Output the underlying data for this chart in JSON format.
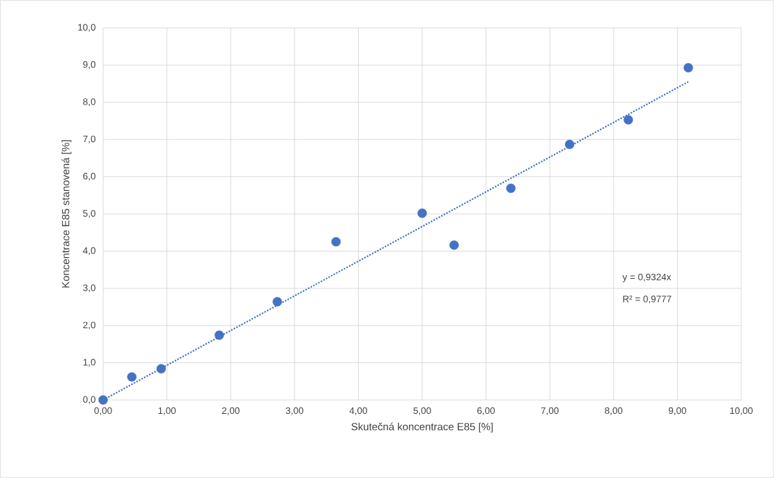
{
  "chart_data": {
    "type": "scatter",
    "xlabel": "Skutečná koncentrace E85 [%]",
    "ylabel": "Koncentrace E85 stanovená [%]",
    "xlim": [
      0,
      10
    ],
    "ylim": [
      0,
      10
    ],
    "xticks": [
      {
        "value": 0,
        "label": "0,00"
      },
      {
        "value": 1,
        "label": "1,00"
      },
      {
        "value": 2,
        "label": "2,00"
      },
      {
        "value": 3,
        "label": "3,00"
      },
      {
        "value": 4,
        "label": "4,00"
      },
      {
        "value": 5,
        "label": "5,00"
      },
      {
        "value": 6,
        "label": "6,00"
      },
      {
        "value": 7,
        "label": "7,00"
      },
      {
        "value": 8,
        "label": "8,00"
      },
      {
        "value": 9,
        "label": "9,00"
      },
      {
        "value": 10,
        "label": "10,00"
      }
    ],
    "yticks": [
      {
        "value": 0,
        "label": "0,0"
      },
      {
        "value": 1,
        "label": "1,0"
      },
      {
        "value": 2,
        "label": "2,0"
      },
      {
        "value": 3,
        "label": "3,0"
      },
      {
        "value": 4,
        "label": "4,0"
      },
      {
        "value": 5,
        "label": "5,0"
      },
      {
        "value": 6,
        "label": "6,0"
      },
      {
        "value": 7,
        "label": "7,0"
      },
      {
        "value": 8,
        "label": "8,0"
      },
      {
        "value": 9,
        "label": "9,0"
      },
      {
        "value": 10,
        "label": "10,0"
      }
    ],
    "grid": true,
    "series": [
      {
        "marker": "circle",
        "color": "#4472c4",
        "x": [
          0,
          0.45,
          0.91,
          1.82,
          2.73,
          3.65,
          5.0,
          5.5,
          6.39,
          7.31,
          8.23,
          9.17
        ],
        "values": [
          0,
          0.62,
          0.84,
          1.74,
          2.64,
          4.25,
          5.02,
          4.16,
          5.69,
          6.87,
          7.53,
          8.93
        ]
      },
      {
        "type": "line",
        "color": "#4472c4",
        "line_style": "dotted",
        "marker": "none",
        "x": [
          0,
          9.17
        ],
        "values": [
          0,
          8.55
        ]
      }
    ],
    "annotations": [
      "y = 0,9324x",
      "R² = 0,9777"
    ]
  }
}
